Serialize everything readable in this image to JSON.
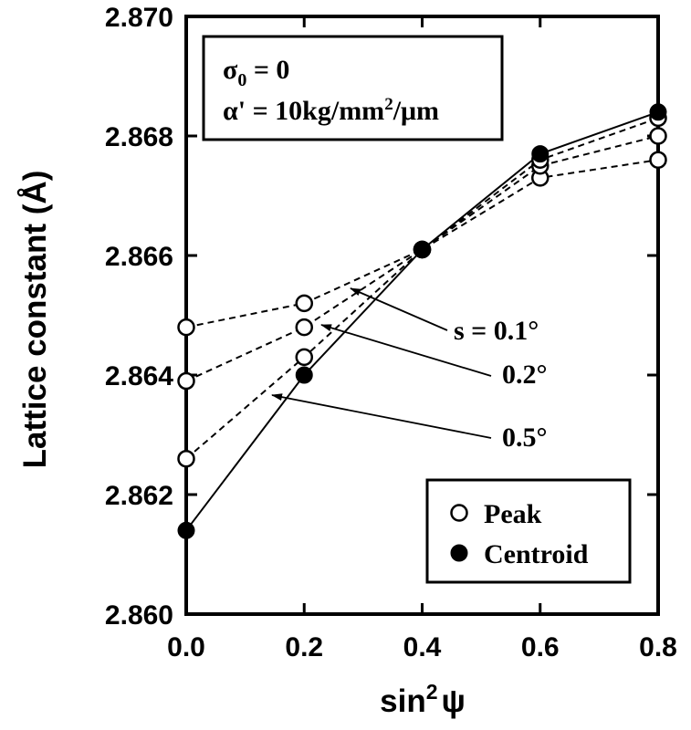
{
  "chart_data": {
    "type": "line",
    "xlabel": "sin",
    "xlabel_sup": "2",
    "xlabel_suffix": "ψ",
    "ylabel": "Lattice constant (Å)",
    "xlim": [
      0.0,
      0.8
    ],
    "ylim": [
      2.86,
      2.87
    ],
    "xticks": [
      "0.0",
      "0.2",
      "0.4",
      "0.6",
      "0.8"
    ],
    "yticks": [
      "2.860",
      "2.862",
      "2.864",
      "2.866",
      "2.868",
      "2.870"
    ],
    "x": [
      0.0,
      0.2,
      0.4,
      0.6,
      0.8
    ],
    "grid": false,
    "series": [
      {
        "name": "Peak",
        "label": "s = 0.1°",
        "marker": "open-circle",
        "line": "dashed",
        "values": [
          2.8648,
          2.8652,
          2.8661,
          2.8673,
          2.8676
        ]
      },
      {
        "name": "Peak",
        "label": "0.2°",
        "marker": "open-circle",
        "line": "dashed",
        "values": [
          2.8639,
          2.8648,
          2.8661,
          2.8675,
          2.868
        ]
      },
      {
        "name": "Peak",
        "label": "0.5°",
        "marker": "open-circle",
        "line": "dashed",
        "values": [
          2.8626,
          2.8643,
          2.8661,
          2.8676,
          2.8683
        ]
      },
      {
        "name": "Centroid",
        "label": "",
        "marker": "filled-circle",
        "line": "solid",
        "values": [
          2.8614,
          2.864,
          2.8661,
          2.8677,
          2.8684
        ]
      }
    ],
    "conditions": {
      "line1_symbol": "σ",
      "line1_sub": "0",
      "line1_rest": " = 0",
      "line2_text": "α' = 10kg/mm",
      "line2_sup": "2",
      "line2_rest": "/μm"
    },
    "legend": {
      "placement": "bottom-right",
      "entries": [
        {
          "label": "Peak",
          "marker": "open-circle"
        },
        {
          "label": "Centroid",
          "marker": "filled-circle"
        }
      ]
    }
  }
}
